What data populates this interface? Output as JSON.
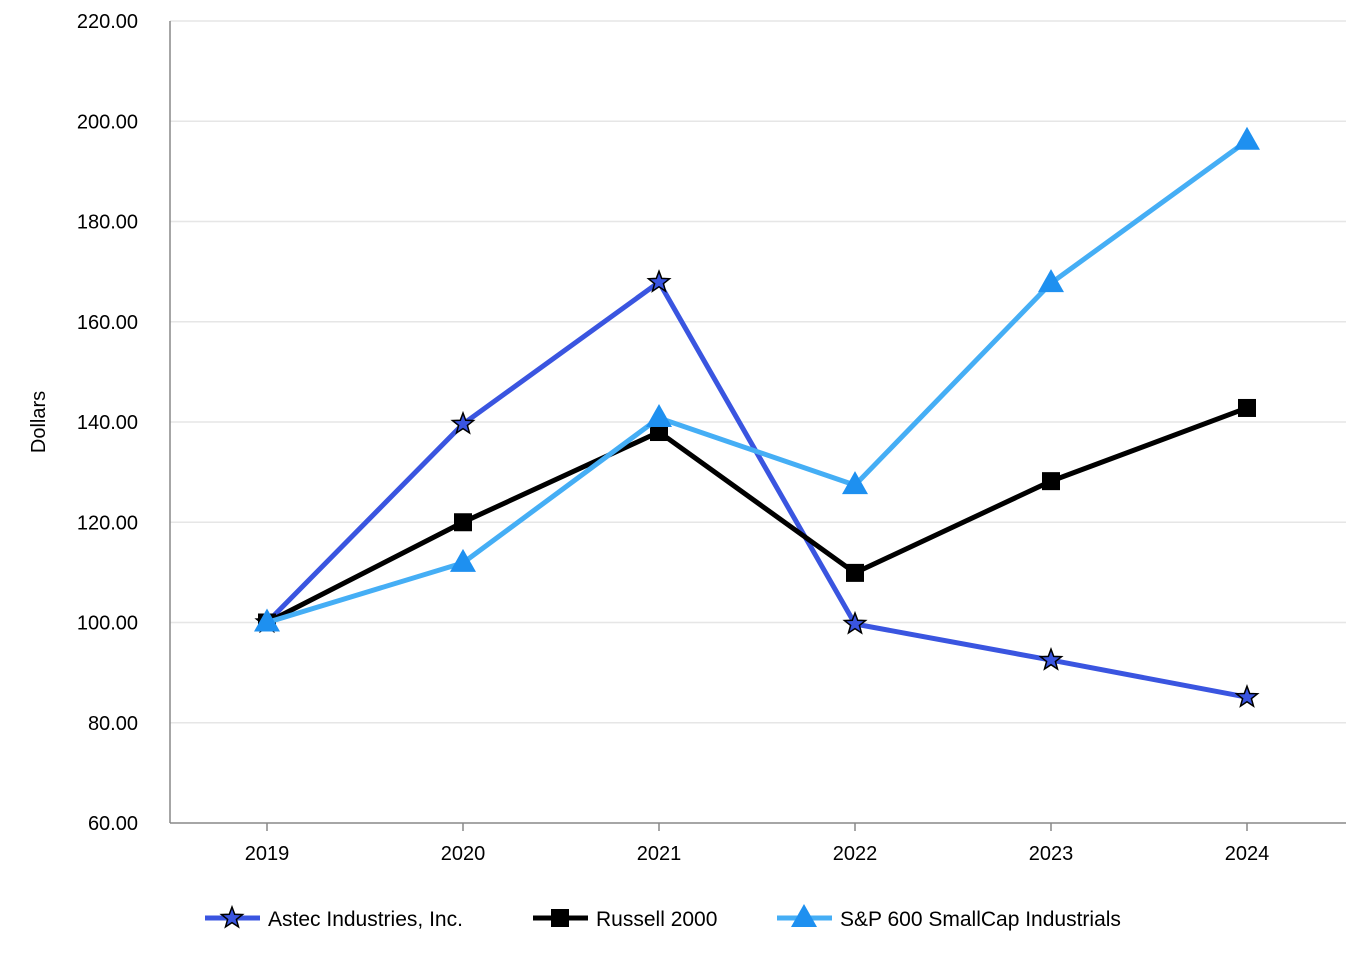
{
  "chart_data": {
    "type": "line",
    "title": "",
    "xlabel": "",
    "ylabel": "Dollars",
    "ylim": [
      60,
      220
    ],
    "yticks": [
      "60.00",
      "80.00",
      "100.00",
      "120.00",
      "140.00",
      "160.00",
      "180.00",
      "200.00",
      "220.00"
    ],
    "categories": [
      "2019",
      "2020",
      "2021",
      "2022",
      "2023",
      "2024"
    ],
    "grid": true,
    "legend_position": "bottom",
    "series": [
      {
        "name": "Astec Industries, Inc.",
        "values": [
          100.0,
          139.6,
          167.9,
          99.7,
          92.5,
          85.1
        ],
        "color": "#3A55E0",
        "marker": "star",
        "marker_color": "#3A55E0"
      },
      {
        "name": "Russell 2000",
        "values": [
          100.0,
          120.0,
          138.0,
          109.9,
          128.2,
          142.8
        ],
        "color": "#000000",
        "marker": "square",
        "marker_color": "#000000"
      },
      {
        "name": "S&P 600 SmallCap Industrials",
        "values": [
          100.0,
          111.9,
          140.8,
          127.4,
          167.7,
          196.1
        ],
        "color": "#45AEF5",
        "marker": "triangle",
        "marker_color": "#1E90F0"
      }
    ]
  }
}
